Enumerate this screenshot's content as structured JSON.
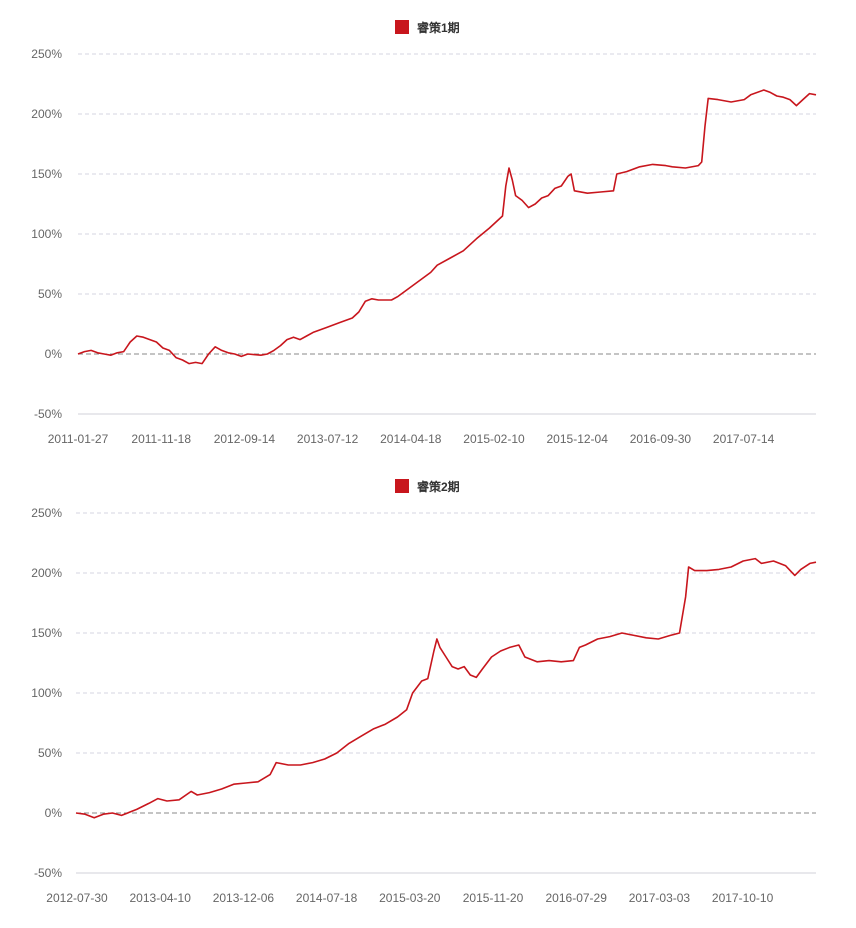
{
  "chart_data": [
    {
      "type": "line",
      "legend": "睿策1期",
      "series": [
        {
          "name": "睿策1期",
          "color": "#c8161d"
        }
      ],
      "ylim": [
        -50,
        250
      ],
      "y_ticks": [
        "250%",
        "200%",
        "150%",
        "100%",
        "50%",
        "0%",
        "-50%"
      ],
      "y_tick_values": [
        250,
        200,
        150,
        100,
        50,
        0,
        -50
      ],
      "x_ticks": [
        "2011-01-27",
        "2011-11-18",
        "2012-09-14",
        "2013-07-12",
        "2014-04-18",
        "2015-02-10",
        "2015-12-04",
        "2016-09-30",
        "2017-07-14"
      ],
      "x_tick_positions": [
        0,
        1,
        2,
        3,
        4,
        5,
        6,
        7,
        8
      ],
      "x_max": 9,
      "grid": "dashed-horizontal",
      "legend_position": "top-center",
      "points": [
        [
          0.0,
          0
        ],
        [
          0.1,
          2
        ],
        [
          0.2,
          3
        ],
        [
          0.3,
          1
        ],
        [
          0.4,
          0
        ],
        [
          0.5,
          -1
        ],
        [
          0.6,
          1
        ],
        [
          0.7,
          2
        ],
        [
          0.8,
          10
        ],
        [
          0.9,
          15
        ],
        [
          1.0,
          14
        ],
        [
          1.1,
          12
        ],
        [
          1.2,
          10
        ],
        [
          1.3,
          5
        ],
        [
          1.4,
          3
        ],
        [
          1.5,
          -3
        ],
        [
          1.6,
          -5
        ],
        [
          1.7,
          -8
        ],
        [
          1.8,
          -7
        ],
        [
          1.9,
          -8
        ],
        [
          2.0,
          0
        ],
        [
          2.1,
          6
        ],
        [
          2.2,
          3
        ],
        [
          2.3,
          1
        ],
        [
          2.4,
          0
        ],
        [
          2.5,
          -2
        ],
        [
          2.6,
          0
        ],
        [
          2.8,
          -1
        ],
        [
          2.9,
          0
        ],
        [
          3.0,
          3
        ],
        [
          3.1,
          7
        ],
        [
          3.2,
          12
        ],
        [
          3.3,
          14
        ],
        [
          3.4,
          12
        ],
        [
          3.5,
          15
        ],
        [
          3.6,
          18
        ],
        [
          3.8,
          22
        ],
        [
          4.0,
          26
        ],
        [
          4.2,
          30
        ],
        [
          4.3,
          35
        ],
        [
          4.4,
          44
        ],
        [
          4.5,
          46
        ],
        [
          4.6,
          45
        ],
        [
          4.8,
          45
        ],
        [
          4.9,
          48
        ],
        [
          5.0,
          52
        ],
        [
          5.2,
          60
        ],
        [
          5.4,
          68
        ],
        [
          5.5,
          74
        ],
        [
          5.7,
          80
        ],
        [
          5.9,
          86
        ],
        [
          6.1,
          96
        ],
        [
          6.3,
          105
        ],
        [
          6.5,
          115
        ],
        [
          6.55,
          140
        ],
        [
          6.6,
          155
        ],
        [
          6.65,
          145
        ],
        [
          6.7,
          132
        ],
        [
          6.8,
          128
        ],
        [
          6.9,
          122
        ],
        [
          7.0,
          125
        ],
        [
          7.1,
          130
        ],
        [
          7.2,
          132
        ],
        [
          7.3,
          138
        ],
        [
          7.4,
          140
        ],
        [
          7.5,
          148
        ],
        [
          7.55,
          150
        ],
        [
          7.6,
          136
        ],
        [
          7.8,
          134
        ],
        [
          8.0,
          135
        ],
        [
          8.2,
          136
        ],
        [
          8.25,
          150
        ],
        [
          8.4,
          152
        ],
        [
          8.6,
          156
        ],
        [
          8.8,
          158
        ],
        [
          9.0,
          157
        ],
        [
          9.1,
          156
        ],
        [
          9.3,
          155
        ],
        [
          9.5,
          157
        ],
        [
          9.55,
          160
        ],
        [
          9.6,
          190
        ],
        [
          9.65,
          213
        ],
        [
          9.8,
          212
        ],
        [
          10.0,
          210
        ],
        [
          10.2,
          212
        ],
        [
          10.3,
          216
        ],
        [
          10.5,
          220
        ],
        [
          10.6,
          218
        ],
        [
          10.7,
          215
        ],
        [
          10.8,
          214
        ],
        [
          10.9,
          212
        ],
        [
          11.0,
          207
        ],
        [
          11.1,
          212
        ],
        [
          11.2,
          217
        ],
        [
          11.3,
          216
        ]
      ],
      "plot_x_max": 11.3
    },
    {
      "type": "line",
      "legend": "睿策2期",
      "series": [
        {
          "name": "睿策2期",
          "color": "#c8161d"
        }
      ],
      "ylim": [
        -50,
        250
      ],
      "y_ticks": [
        "250%",
        "200%",
        "150%",
        "100%",
        "50%",
        "0%",
        "-50%"
      ],
      "y_tick_values": [
        250,
        200,
        150,
        100,
        50,
        0,
        -50
      ],
      "x_ticks": [
        "2012-07-30",
        "2013-04-10",
        "2013-12-06",
        "2014-07-18",
        "2015-03-20",
        "2015-11-20",
        "2016-07-29",
        "2017-03-03",
        "2017-10-10"
      ],
      "x_tick_positions": [
        0,
        1,
        2,
        3,
        4,
        5,
        6,
        7,
        8
      ],
      "x_max": 9,
      "grid": "dashed-horizontal",
      "legend_position": "top-center",
      "points": [
        [
          0.0,
          0
        ],
        [
          0.15,
          -1
        ],
        [
          0.3,
          -4
        ],
        [
          0.45,
          -1
        ],
        [
          0.6,
          0
        ],
        [
          0.75,
          -2
        ],
        [
          0.9,
          1
        ],
        [
          1.0,
          3
        ],
        [
          1.2,
          8
        ],
        [
          1.35,
          12
        ],
        [
          1.5,
          10
        ],
        [
          1.7,
          11
        ],
        [
          1.9,
          18
        ],
        [
          2.0,
          15
        ],
        [
          2.2,
          17
        ],
        [
          2.4,
          20
        ],
        [
          2.6,
          24
        ],
        [
          2.8,
          25
        ],
        [
          3.0,
          26
        ],
        [
          3.2,
          32
        ],
        [
          3.3,
          42
        ],
        [
          3.5,
          40
        ],
        [
          3.7,
          40
        ],
        [
          3.9,
          42
        ],
        [
          4.1,
          45
        ],
        [
          4.3,
          50
        ],
        [
          4.5,
          58
        ],
        [
          4.7,
          64
        ],
        [
          4.9,
          70
        ],
        [
          5.1,
          74
        ],
        [
          5.3,
          80
        ],
        [
          5.45,
          86
        ],
        [
          5.55,
          100
        ],
        [
          5.7,
          110
        ],
        [
          5.8,
          112
        ],
        [
          5.9,
          135
        ],
        [
          5.95,
          145
        ],
        [
          6.0,
          138
        ],
        [
          6.1,
          130
        ],
        [
          6.2,
          122
        ],
        [
          6.3,
          120
        ],
        [
          6.4,
          122
        ],
        [
          6.5,
          115
        ],
        [
          6.6,
          113
        ],
        [
          6.7,
          120
        ],
        [
          6.85,
          130
        ],
        [
          7.0,
          135
        ],
        [
          7.15,
          138
        ],
        [
          7.3,
          140
        ],
        [
          7.4,
          130
        ],
        [
          7.6,
          126
        ],
        [
          7.8,
          127
        ],
        [
          8.0,
          126
        ],
        [
          8.2,
          127
        ],
        [
          8.3,
          138
        ],
        [
          8.4,
          140
        ],
        [
          8.6,
          145
        ],
        [
          8.8,
          147
        ],
        [
          9.0,
          150
        ],
        [
          9.2,
          148
        ],
        [
          9.4,
          146
        ],
        [
          9.6,
          145
        ],
        [
          9.8,
          148
        ],
        [
          9.95,
          150
        ],
        [
          10.05,
          180
        ],
        [
          10.1,
          205
        ],
        [
          10.2,
          202
        ],
        [
          10.4,
          202
        ],
        [
          10.6,
          203
        ],
        [
          10.8,
          205
        ],
        [
          11.0,
          210
        ],
        [
          11.2,
          212
        ],
        [
          11.3,
          208
        ],
        [
          11.5,
          210
        ],
        [
          11.7,
          206
        ],
        [
          11.85,
          198
        ],
        [
          11.95,
          203
        ],
        [
          12.1,
          208
        ],
        [
          12.2,
          209
        ]
      ],
      "plot_x_max": 12.2
    }
  ]
}
